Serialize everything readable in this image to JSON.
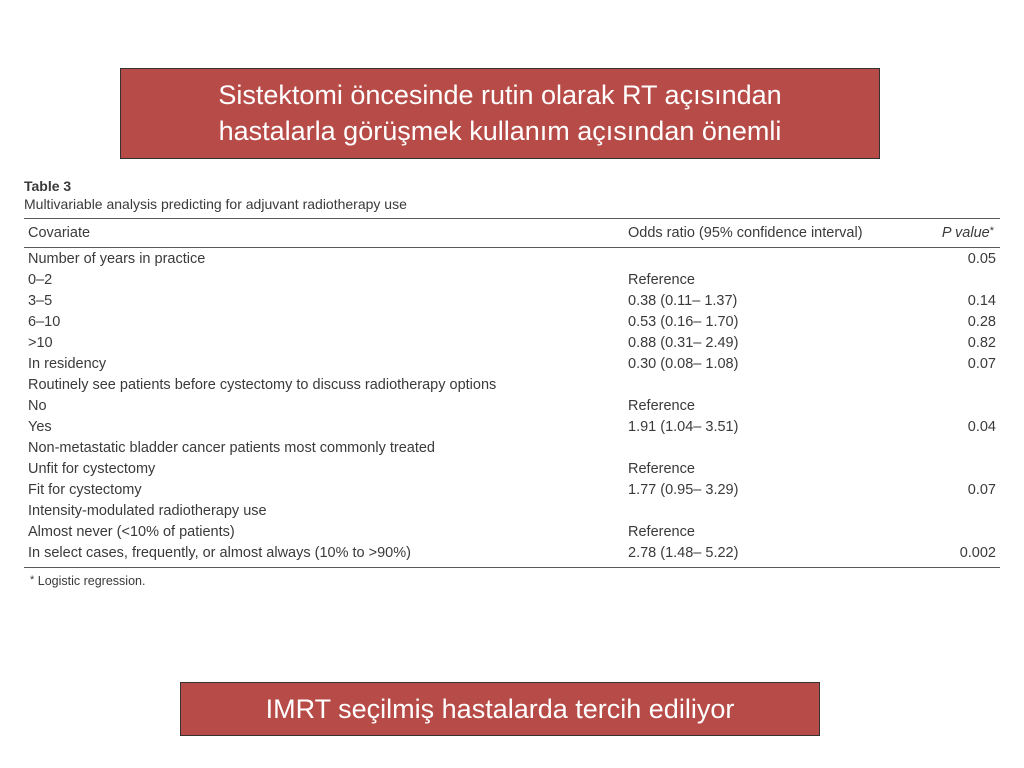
{
  "colors": {
    "callout_bg": "#b74b47",
    "callout_text": "#ffffff",
    "page_bg": "#ffffff",
    "text": "#3a3a3a",
    "rule": "#5a5a5a"
  },
  "typography": {
    "callout_fontsize_pt": 20,
    "table_fontsize_pt": 11,
    "footnote_fontsize_pt": 9
  },
  "callout_top": {
    "line1": "Sistektomi öncesinde rutin olarak RT açısından",
    "line2": "hastalarla görüşmek kullanım açısından önemli"
  },
  "callout_bottom": "IMRT seçilmiş hastalarda tercih ediliyor",
  "table": {
    "label": "Table 3",
    "caption": "Multivariable analysis predicting for adjuvant radiotherapy use",
    "columns": {
      "covariate": "Covariate",
      "odds_ratio": "Odds ratio (95% confidence interval)",
      "p_value_prefix": "P value",
      "p_value_marker": "*"
    },
    "rows": [
      {
        "type": "group",
        "label": "Number of years in practice",
        "or": "",
        "p": "0.05"
      },
      {
        "type": "sub",
        "label": "0–2",
        "or": "Reference",
        "p": ""
      },
      {
        "type": "sub",
        "label": "3–5",
        "or": "0.38 (0.11– 1.37)",
        "p": "0.14"
      },
      {
        "type": "sub",
        "label": "6–10",
        "or": "0.53 (0.16– 1.70)",
        "p": "0.28"
      },
      {
        "type": "sub",
        "label": ">10",
        "or": "0.88 (0.31– 2.49)",
        "p": "0.82"
      },
      {
        "type": "sub",
        "label": "In residency",
        "or": "0.30 (0.08– 1.08)",
        "p": "0.07"
      },
      {
        "type": "group",
        "label": "Routinely see patients before cystectomy to discuss radiotherapy options",
        "or": "",
        "p": ""
      },
      {
        "type": "sub",
        "label": "No",
        "or": "Reference",
        "p": ""
      },
      {
        "type": "sub",
        "label": "Yes",
        "or": "1.91 (1.04– 3.51)",
        "p": "0.04"
      },
      {
        "type": "group",
        "label": "Non-metastatic bladder cancer patients most commonly treated",
        "or": "",
        "p": ""
      },
      {
        "type": "sub",
        "label": "Unfit for cystectomy",
        "or": "Reference",
        "p": ""
      },
      {
        "type": "sub",
        "label": "Fit for cystectomy",
        "or": "1.77 (0.95– 3.29)",
        "p": "0.07"
      },
      {
        "type": "group",
        "label": "Intensity-modulated radiotherapy use",
        "or": "",
        "p": ""
      },
      {
        "type": "sub",
        "label": "Almost never (<10% of patients)",
        "or": "Reference",
        "p": ""
      },
      {
        "type": "sub",
        "label": "In select cases, frequently, or almost always (10% to >90%)",
        "or": "2.78 (1.48– 5.22)",
        "p": "0.002"
      }
    ],
    "footnote_marker": "*",
    "footnote_text": " Logistic regression."
  }
}
